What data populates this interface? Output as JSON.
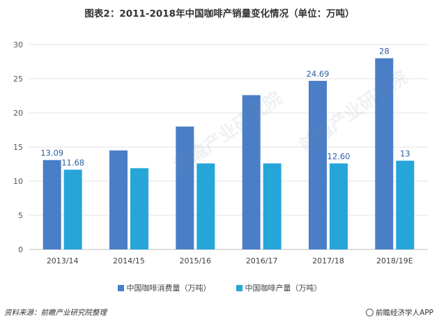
{
  "title": "图表2：2011-2018年中国咖啡产销量变化情况（单位：万吨）",
  "source": "资料来源：前瞻产业研究院整理",
  "brand": "前瞻经济学人APP",
  "watermark": "前瞻产业研究院",
  "chart_data": {
    "type": "bar",
    "title": "图表2：2011-2018年中国咖啡产销量变化情况（单位：万吨）",
    "xlabel": "",
    "ylabel": "",
    "ylim": [
      0,
      30
    ],
    "yticks": [
      0,
      5,
      10,
      15,
      20,
      25,
      30
    ],
    "grid": true,
    "legend_position": "bottom",
    "categories": [
      "2013/14",
      "2014/15",
      "2015/16",
      "2016/17",
      "2017/18",
      "2018/19E"
    ],
    "series": [
      {
        "name": "中国咖啡消费量（万吨）",
        "color": "#4a7ec6",
        "values": [
          13.09,
          14.5,
          18.0,
          22.6,
          24.69,
          28
        ],
        "labels": [
          "13.09",
          "",
          "",
          "",
          "24.69",
          "28"
        ]
      },
      {
        "name": "中国咖啡产量（万吨）",
        "color": "#26a5d9",
        "values": [
          11.68,
          11.9,
          12.6,
          12.6,
          12.6,
          13
        ],
        "labels": [
          "11.68",
          "",
          "",
          "",
          "12.60",
          "13"
        ]
      }
    ]
  }
}
